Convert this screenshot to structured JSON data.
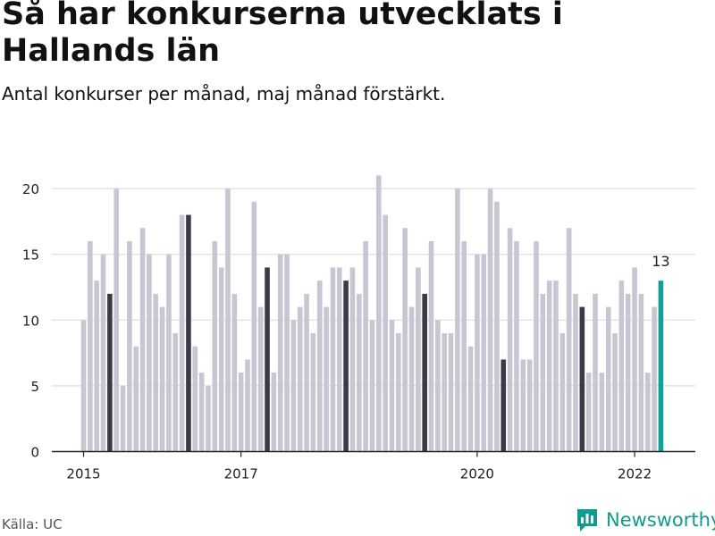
{
  "header": {
    "title": "Så har konkurserna utvecklats i Hallands län",
    "subtitle": "Antal konkurser per månad, maj månad förstärkt."
  },
  "footer": {
    "source": "Källa: UC",
    "brand": "Newsworthy"
  },
  "colors": {
    "bar": "#c7c6d3",
    "highlight": "#3b3a49",
    "latest": "#14a09a",
    "grid": "#dddddd",
    "text": "#222222",
    "brand": "#0f9b8e"
  },
  "icons": {
    "brand": "bar-chart-speech-bubble-icon"
  },
  "chart_data": {
    "type": "bar",
    "title": "Så har konkurserna utvecklats i Hallands län",
    "subtitle": "Antal konkurser per månad, maj månad förstärkt.",
    "ylim": [
      0,
      22
    ],
    "yticks": [
      0,
      5,
      10,
      15,
      20
    ],
    "xticks": [
      "2015",
      "2017",
      "2020",
      "2022"
    ],
    "grid": true,
    "start_period": "2015-01",
    "end_period": "2022-05",
    "highlight_month": "maj",
    "last_value_label": "13",
    "values": [
      10,
      16,
      13,
      15,
      12,
      20,
      5,
      16,
      8,
      17,
      15,
      12,
      11,
      15,
      9,
      18,
      18,
      8,
      6,
      5,
      16,
      14,
      20,
      12,
      6,
      7,
      19,
      11,
      14,
      6,
      15,
      15,
      10,
      11,
      12,
      9,
      13,
      11,
      14,
      14,
      13,
      14,
      12,
      16,
      10,
      21,
      18,
      10,
      9,
      17,
      11,
      14,
      12,
      16,
      10,
      9,
      9,
      20,
      16,
      8,
      15,
      15,
      20,
      19,
      7,
      17,
      16,
      7,
      7,
      16,
      12,
      13,
      13,
      9,
      17,
      12,
      11,
      6,
      12,
      6,
      11,
      9,
      13,
      12,
      14,
      12,
      6,
      11,
      13
    ]
  }
}
